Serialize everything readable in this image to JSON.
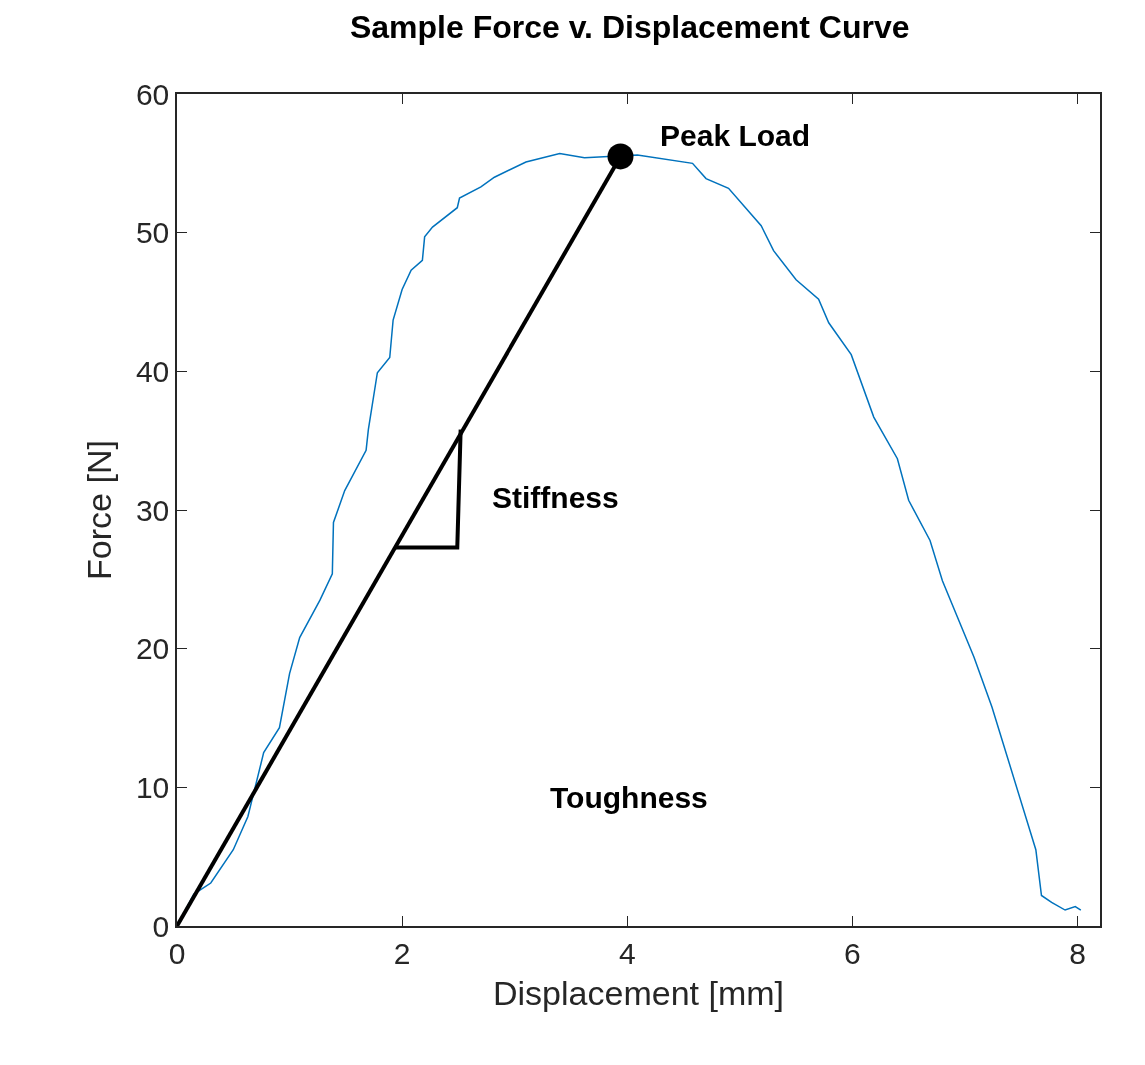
{
  "chart_data": {
    "type": "line",
    "title": "Sample Force v. Displacement Curve",
    "xlabel": "Displacement [mm]",
    "ylabel": "Force [N]",
    "xlim": [
      0,
      8.2
    ],
    "ylim": [
      0,
      60
    ],
    "xticks": [
      0,
      2,
      4,
      6,
      8
    ],
    "yticks": [
      0,
      10,
      20,
      30,
      40,
      50,
      60
    ],
    "grid": false,
    "series": [
      {
        "color": "#0072bd",
        "x": [
          0,
          0.15,
          0.3,
          0.5,
          0.63,
          0.77,
          0.91,
          1.0,
          1.09,
          1.27,
          1.38,
          1.39,
          1.49,
          1.68,
          1.7,
          1.78,
          1.89,
          1.92,
          2.0,
          2.08,
          2.18,
          2.2,
          2.27,
          2.49,
          2.51,
          2.7,
          2.82,
          3.1,
          3.4,
          3.62,
          4.09,
          4.58,
          4.7,
          4.9,
          5.19,
          5.3,
          5.5,
          5.7,
          5.79,
          5.99,
          6.19,
          6.4,
          6.5,
          6.69,
          6.8,
          7.08,
          7.24,
          7.63,
          7.68,
          7.77,
          7.89,
          7.98,
          8.03
        ],
        "values": [
          0,
          2.3,
          3.1,
          5.5,
          7.9,
          12.5,
          14.3,
          18.2,
          20.8,
          23.5,
          25.4,
          29.1,
          31.4,
          34.3,
          35.8,
          39.9,
          41.0,
          43.7,
          45.9,
          47.3,
          48.0,
          49.7,
          50.4,
          51.8,
          52.5,
          53.3,
          54.0,
          55.1,
          55.7,
          55.4,
          55.6,
          55.0,
          53.9,
          53.2,
          50.5,
          48.7,
          46.6,
          45.2,
          43.5,
          41.2,
          36.7,
          33.7,
          30.7,
          27.8,
          24.9,
          19.4,
          15.8,
          5.5,
          2.2,
          1.7,
          1.15,
          1.4,
          1.15
        ],
        "marker": "none"
      },
      {
        "color": "#000000",
        "x": [
          0,
          3.94
        ],
        "values": [
          0,
          55.5
        ],
        "marker": "none"
      },
      {
        "color": "#000000",
        "x": [
          1.93,
          2.49,
          2.52
        ],
        "values": [
          27.3,
          27.3,
          35.8
        ],
        "marker": "none"
      },
      {
        "type": "scatter",
        "color": "#000000",
        "x": [
          3.94
        ],
        "values": [
          55.5
        ],
        "marker": "circle"
      }
    ],
    "annotations": [
      {
        "text": "Peak Load",
        "x": 3.94,
        "y": 55.5
      },
      "Stiffness",
      "Toughness"
    ]
  }
}
